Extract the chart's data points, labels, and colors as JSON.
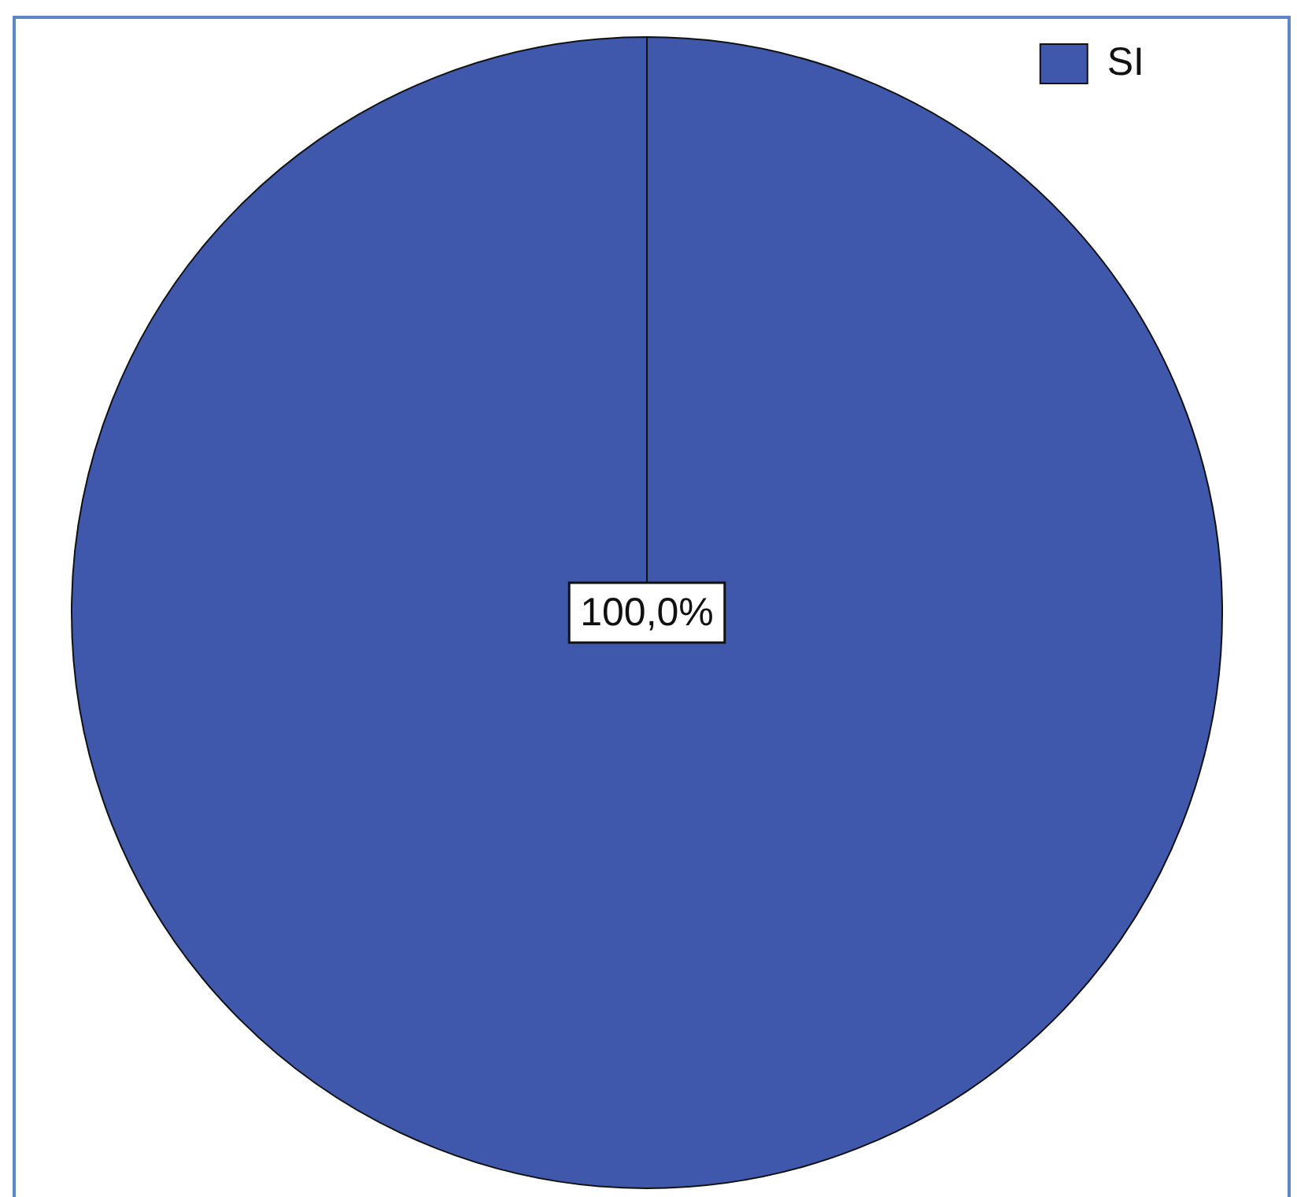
{
  "chart_data": {
    "type": "pie",
    "categories": [
      "SI"
    ],
    "values": [
      100
    ],
    "colors": [
      "#3f58ab"
    ],
    "value_labels": [
      "100,0%"
    ],
    "legend": "top right"
  }
}
